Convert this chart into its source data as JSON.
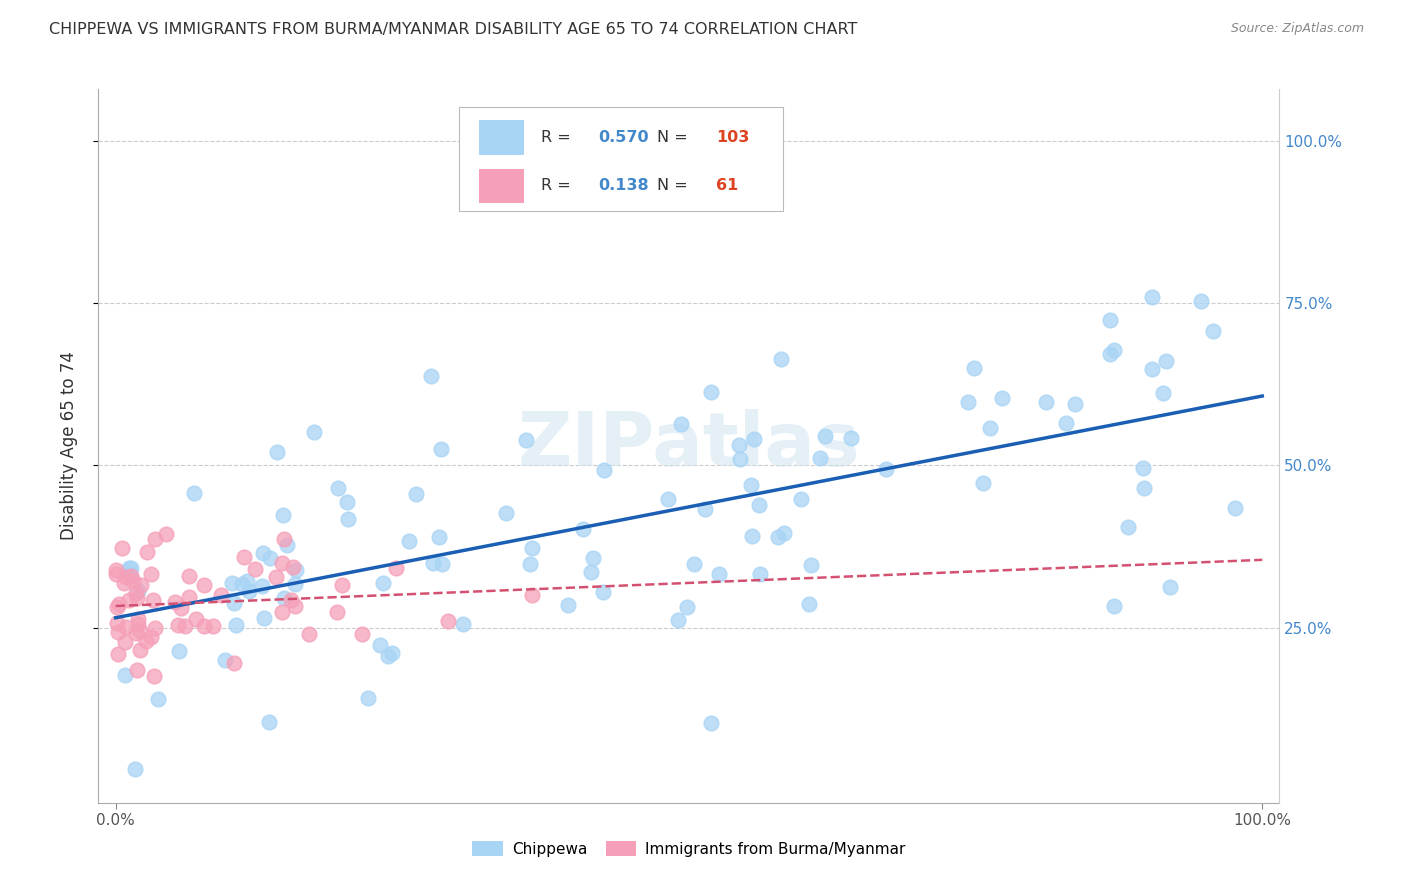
{
  "title": "CHIPPEWA VS IMMIGRANTS FROM BURMA/MYANMAR DISABILITY AGE 65 TO 74 CORRELATION CHART",
  "source": "Source: ZipAtlas.com",
  "ylabel": "Disability Age 65 to 74",
  "legend_label1": "Chippewa",
  "legend_label2": "Immigrants from Burma/Myanmar",
  "r1": "0.570",
  "n1": "103",
  "r2": "0.138",
  "n2": "61",
  "color_blue": "#a8d4f5",
  "color_pink": "#f5a0b8",
  "color_line_blue": "#1a5fb4",
  "color_line_pink": "#d45070",
  "color_r_val": "#4488cc",
  "color_n_val": "#dd4422",
  "watermark_color": "#d8e8f0",
  "grid_color": "#cccccc",
  "right_tick_color": "#4488cc",
  "title_color": "#333333",
  "source_color": "#888888"
}
